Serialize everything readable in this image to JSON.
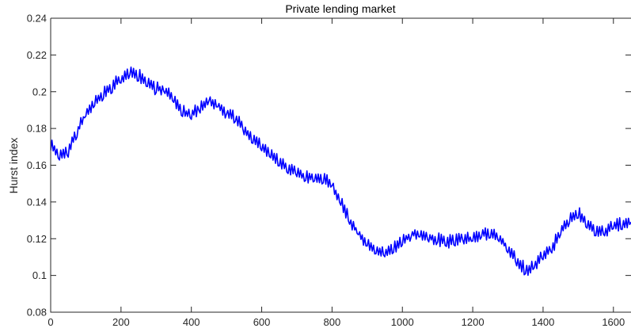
{
  "chart_data": {
    "type": "line",
    "title": "Private lending market",
    "xlabel": "",
    "ylabel": "Hurst index",
    "xlim": [
      0,
      1650
    ],
    "ylim": [
      0.08,
      0.24
    ],
    "xticks": [
      0,
      200,
      400,
      600,
      800,
      1000,
      1200,
      1400,
      1600
    ],
    "xtick_labels": [
      "0",
      "200",
      "400",
      "600",
      "800",
      "1000",
      "1200",
      "1400",
      "1600"
    ],
    "yticks": [
      0.08,
      0.1,
      0.12,
      0.14,
      0.16,
      0.18,
      0.2,
      0.22,
      0.24
    ],
    "ytick_labels": [
      "0.08",
      "0.1",
      "0.12",
      "0.14",
      "0.16",
      "0.18",
      "0.2",
      "0.22",
      "0.24"
    ],
    "grid": false,
    "line_color": "#0000ff",
    "series": [
      {
        "x": [
          0,
          25,
          50,
          75,
          100,
          125,
          150,
          175,
          200,
          225,
          250,
          275,
          300,
          325,
          350,
          375,
          400,
          425,
          450,
          475,
          500,
          525,
          550,
          575,
          600,
          625,
          650,
          675,
          700,
          725,
          750,
          775,
          800,
          825,
          850,
          875,
          900,
          925,
          950,
          975,
          1000,
          1025,
          1050,
          1075,
          1100,
          1125,
          1150,
          1175,
          1200,
          1225,
          1250,
          1275,
          1300,
          1325,
          1350,
          1375,
          1400,
          1425,
          1450,
          1475,
          1500,
          1525,
          1550,
          1575,
          1600,
          1625,
          1650
        ],
        "values": [
          0.172,
          0.165,
          0.168,
          0.178,
          0.188,
          0.194,
          0.199,
          0.203,
          0.207,
          0.211,
          0.209,
          0.205,
          0.202,
          0.201,
          0.196,
          0.189,
          0.188,
          0.191,
          0.196,
          0.193,
          0.189,
          0.186,
          0.18,
          0.174,
          0.171,
          0.166,
          0.162,
          0.158,
          0.156,
          0.154,
          0.153,
          0.152,
          0.15,
          0.14,
          0.13,
          0.123,
          0.117,
          0.113,
          0.112,
          0.115,
          0.119,
          0.122,
          0.123,
          0.121,
          0.12,
          0.118,
          0.119,
          0.121,
          0.12,
          0.122,
          0.123,
          0.121,
          0.115,
          0.108,
          0.103,
          0.105,
          0.111,
          0.115,
          0.124,
          0.131,
          0.134,
          0.129,
          0.124,
          0.124,
          0.127,
          0.128,
          0.129
        ]
      }
    ]
  }
}
